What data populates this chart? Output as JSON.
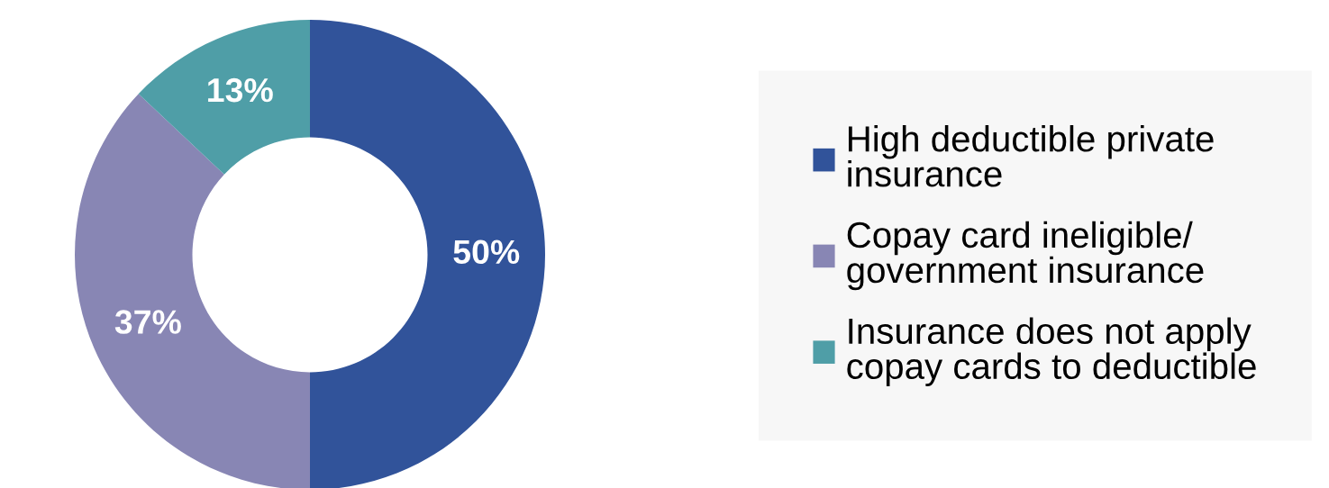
{
  "chart_data": {
    "type": "donut",
    "categories": [
      "High deductible private\ninsurance",
      "Copay card ineligible/\ngovernment insurance",
      "Insurance does not apply\ncopay cards to deductible"
    ],
    "values": [
      50,
      37,
      13
    ],
    "colors": [
      "#31539a",
      "#8886b4",
      "#4f9ea7"
    ],
    "value_labels": [
      "50%",
      "37%",
      "13%"
    ],
    "legend": "right"
  }
}
